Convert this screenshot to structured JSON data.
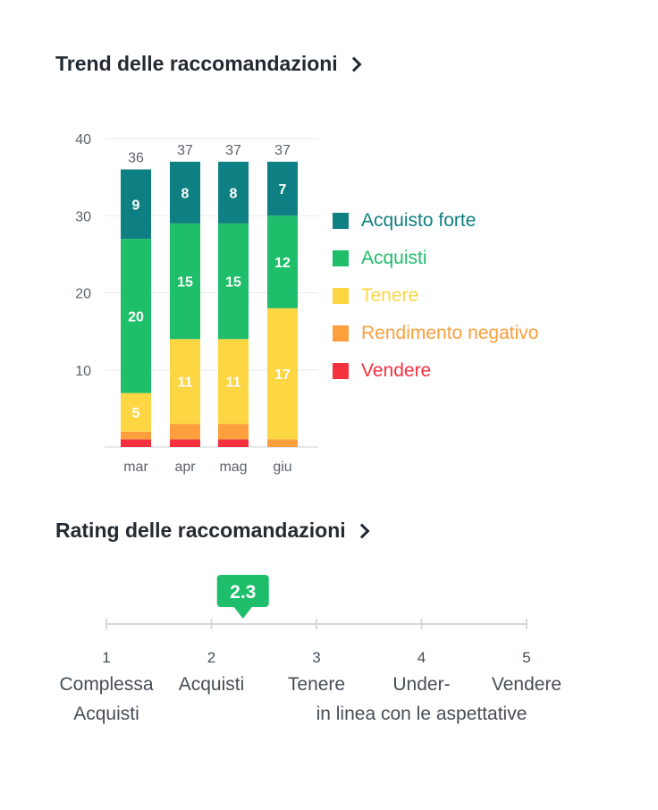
{
  "trend_section": {
    "title": "Trend delle raccomandazioni"
  },
  "rating_section": {
    "title": "Rating delle raccomandazioni"
  },
  "colors": {
    "strong_buy": "#0e7f82",
    "buy": "#1ebe6a",
    "hold": "#fdd643",
    "underperform": "#fc9f3c",
    "sell": "#f5313f"
  },
  "chart_data": [
    {
      "type": "bar",
      "stacked": true,
      "categories": [
        "mar",
        "apr",
        "mag",
        "giu"
      ],
      "totals": [
        36,
        37,
        37,
        37
      ],
      "series": [
        {
          "name": "Vendere",
          "color": "#f5313f",
          "values": [
            1,
            1,
            1,
            0
          ]
        },
        {
          "name": "Rendimento negativo",
          "color": "#fc9f3c",
          "values": [
            1,
            2,
            2,
            1
          ]
        },
        {
          "name": "Tenere",
          "color": "#fdd643",
          "values": [
            5,
            11,
            11,
            17
          ]
        },
        {
          "name": "Acquisti",
          "color": "#1ebe6a",
          "values": [
            20,
            15,
            15,
            12
          ]
        },
        {
          "name": "Acquisto forte",
          "color": "#0e7f82",
          "values": [
            9,
            8,
            8,
            7
          ]
        }
      ],
      "yticks": [
        10,
        20,
        30,
        40
      ],
      "ylim": [
        0,
        40
      ],
      "grid": true,
      "legend_position": "right",
      "legend_order": [
        "Acquisto forte",
        "Acquisti",
        "Tenere",
        "Rendimento negativo",
        "Vendere"
      ]
    },
    {
      "type": "scale",
      "value": 2.3,
      "value_label": "2.3",
      "range": [
        1,
        5
      ],
      "ticks": [
        {
          "value": 1,
          "number": "1",
          "lines": [
            "Complessa",
            "Acquisti"
          ]
        },
        {
          "value": 2,
          "number": "2",
          "lines": [
            "Acquisti"
          ]
        },
        {
          "value": 3,
          "number": "3",
          "lines": [
            "Tenere"
          ]
        },
        {
          "value": 4,
          "number": "4",
          "lines": [
            "Under-",
            "in linea con le aspettative"
          ]
        },
        {
          "value": 5,
          "number": "5",
          "lines": [
            "Vendere"
          ]
        }
      ]
    }
  ]
}
